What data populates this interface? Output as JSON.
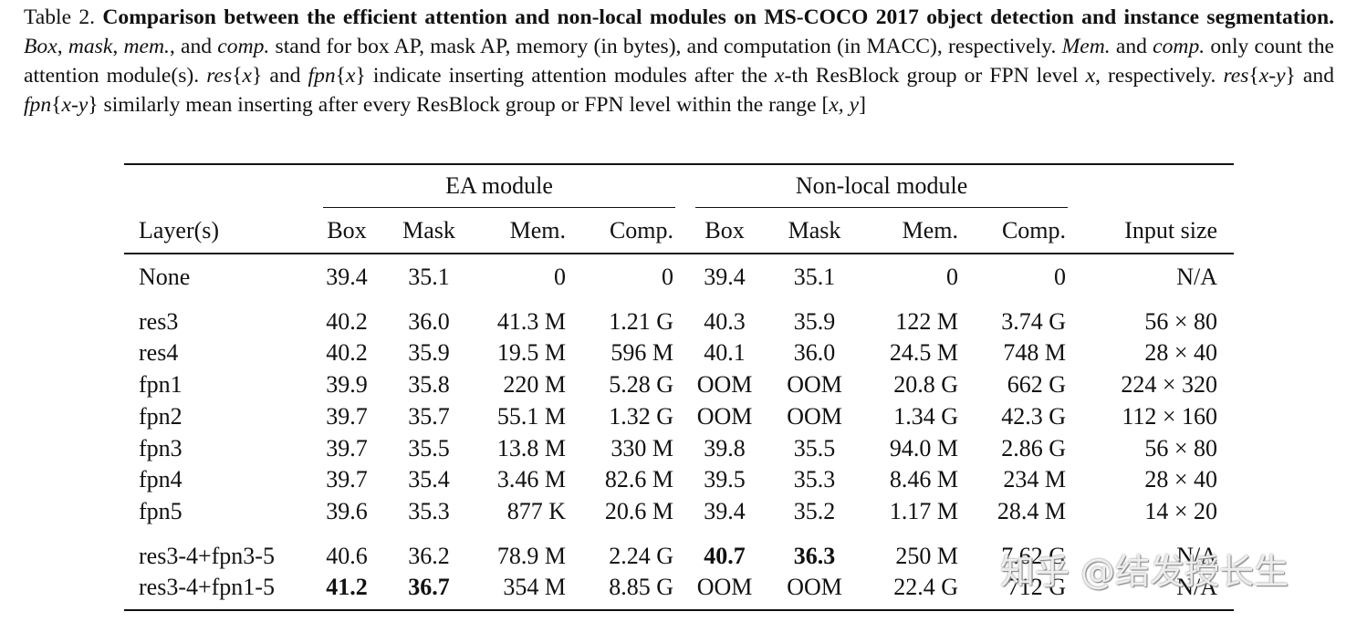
{
  "caption": [
    {
      "text": "Table 2. ",
      "style": "normal"
    },
    {
      "text": "Comparison between the efficient attention and non-local modules on MS-COCO 2017 object detection and instance segmentation.",
      "style": "bold"
    },
    {
      "text": " ",
      "style": "normal"
    },
    {
      "text": "Box",
      "style": "italic"
    },
    {
      "text": ", ",
      "style": "normal"
    },
    {
      "text": "mask",
      "style": "italic"
    },
    {
      "text": ", ",
      "style": "normal"
    },
    {
      "text": "mem.",
      "style": "italic"
    },
    {
      "text": ", and ",
      "style": "normal"
    },
    {
      "text": "comp.",
      "style": "italic"
    },
    {
      "text": " stand for box AP, mask AP, memory (in bytes), and computation (in MACC), respectively. ",
      "style": "normal"
    },
    {
      "text": "Mem.",
      "style": "italic"
    },
    {
      "text": " and ",
      "style": "normal"
    },
    {
      "text": "comp.",
      "style": "italic"
    },
    {
      "text": " only count the attention module(s). ",
      "style": "normal"
    },
    {
      "text": "res",
      "style": "italic"
    },
    {
      "text": "{",
      "style": "normal"
    },
    {
      "text": "x",
      "style": "italic"
    },
    {
      "text": "} and ",
      "style": "normal"
    },
    {
      "text": "fpn",
      "style": "italic"
    },
    {
      "text": "{",
      "style": "normal"
    },
    {
      "text": "x",
      "style": "italic"
    },
    {
      "text": "} indicate inserting attention modules after the ",
      "style": "normal"
    },
    {
      "text": "x",
      "style": "italic"
    },
    {
      "text": "-th ResBlock group or FPN level ",
      "style": "normal"
    },
    {
      "text": "x",
      "style": "italic"
    },
    {
      "text": ", respectively. ",
      "style": "normal"
    },
    {
      "text": "res",
      "style": "italic"
    },
    {
      "text": "{",
      "style": "normal"
    },
    {
      "text": "x-y",
      "style": "italic"
    },
    {
      "text": "} and ",
      "style": "normal"
    },
    {
      "text": "fpn",
      "style": "italic"
    },
    {
      "text": "{",
      "style": "normal"
    },
    {
      "text": "x-y",
      "style": "italic"
    },
    {
      "text": "} similarly mean inserting after every ResBlock group or FPN level within the range [",
      "style": "normal"
    },
    {
      "text": "x, y",
      "style": "italic"
    },
    {
      "text": "]",
      "style": "normal"
    }
  ],
  "table": {
    "groups": [
      "EA module",
      "Non-local module"
    ],
    "columns": [
      "Layer(s)",
      "Box",
      "Mask",
      "Mem.",
      "Comp.",
      "Box",
      "Mask",
      "Mem.",
      "Comp.",
      "Input size"
    ],
    "sections": [
      [
        {
          "cells": [
            "None",
            "39.4",
            "35.1",
            "0",
            "0",
            "39.4",
            "35.1",
            "0",
            "0",
            "N/A"
          ]
        }
      ],
      [
        {
          "cells": [
            "res3",
            "40.2",
            "36.0",
            "41.3 M",
            "1.21 G",
            "40.3",
            "35.9",
            "122 M",
            "3.74 G",
            "56 × 80"
          ]
        },
        {
          "cells": [
            "res4",
            "40.2",
            "35.9",
            "19.5 M",
            "596 M",
            "40.1",
            "36.0",
            "24.5 M",
            "748 M",
            "28 × 40"
          ]
        },
        {
          "cells": [
            "fpn1",
            "39.9",
            "35.8",
            "220 M",
            "5.28 G",
            "OOM",
            "OOM",
            "20.8 G",
            "662 G",
            "224 × 320"
          ]
        },
        {
          "cells": [
            "fpn2",
            "39.7",
            "35.7",
            "55.1 M",
            "1.32 G",
            "OOM",
            "OOM",
            "1.34 G",
            "42.3 G",
            "112 × 160"
          ]
        },
        {
          "cells": [
            "fpn3",
            "39.7",
            "35.5",
            "13.8 M",
            "330 M",
            "39.8",
            "35.5",
            "94.0 M",
            "2.86 G",
            "56 × 80"
          ]
        },
        {
          "cells": [
            "fpn4",
            "39.7",
            "35.4",
            "3.46 M",
            "82.6 M",
            "39.5",
            "35.3",
            "8.46 M",
            "234 M",
            "28 × 40"
          ]
        },
        {
          "cells": [
            "fpn5",
            "39.6",
            "35.3",
            "877 K",
            "20.6 M",
            "39.4",
            "35.2",
            "1.17 M",
            "28.4 M",
            "14 × 20"
          ]
        }
      ],
      [
        {
          "cells": [
            "res3-4+fpn3-5",
            "40.6",
            "36.2",
            "78.9 M",
            "2.24 G",
            "40.7",
            "36.3",
            "250 M",
            "7.62 G",
            "N/A"
          ],
          "bold": [
            5,
            6
          ]
        },
        {
          "cells": [
            "res3-4+fpn1-5",
            "41.2",
            "36.7",
            "354 M",
            "8.85 G",
            "OOM",
            "OOM",
            "22.4 G",
            "712 G",
            "N/A"
          ],
          "bold": [
            1,
            2
          ]
        }
      ]
    ]
  },
  "watermark": "知乎 @结发授长生"
}
